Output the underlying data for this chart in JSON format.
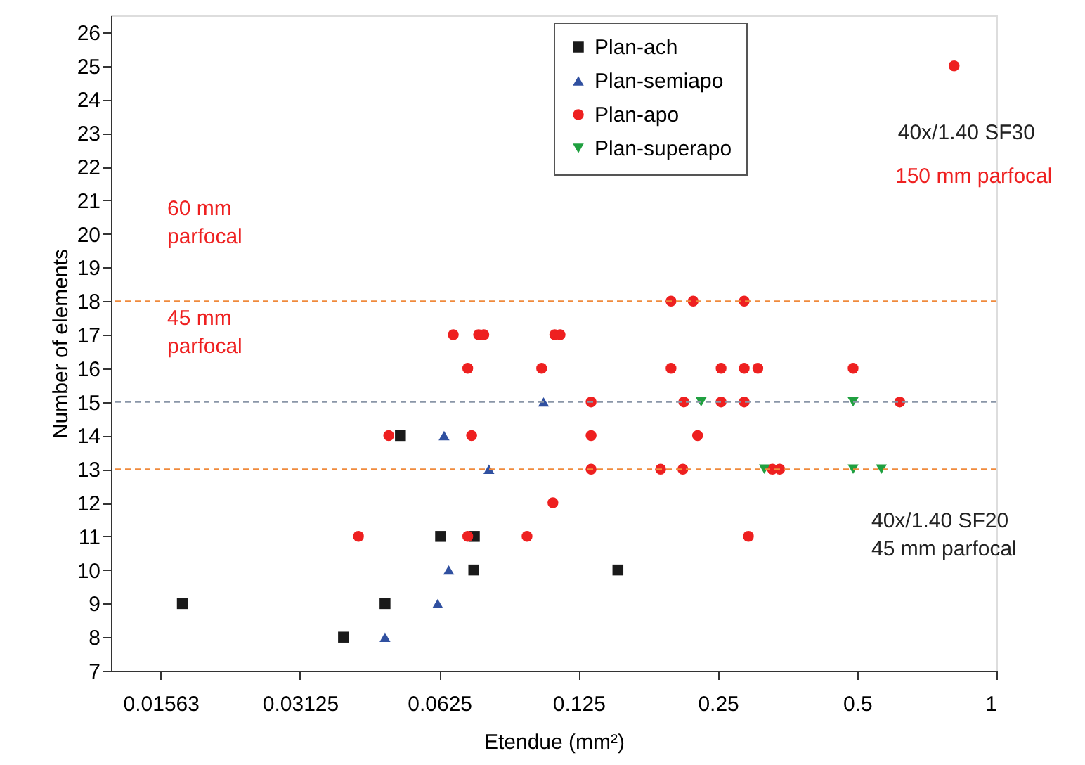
{
  "chart_data": {
    "type": "scatter",
    "xlabel": "Etendue (mm²)",
    "ylabel": "Number of elements",
    "log": "x",
    "xlim": [
      0.0122,
      1
    ],
    "ylim": [
      7,
      26.5
    ],
    "xticks": [
      {
        "value": 0.015625,
        "label": "0.01563"
      },
      0.03125,
      0.0625,
      0.125,
      0.25,
      0.5,
      1
    ],
    "yticks": [
      7,
      8,
      9,
      10,
      11,
      12,
      13,
      14,
      15,
      16,
      17,
      18,
      19,
      20,
      21,
      22,
      23,
      24,
      25,
      26
    ],
    "grid": false,
    "legend": "top",
    "series": [
      {
        "name": "Plan-ach",
        "color": "#1a1a1a",
        "marker": "square",
        "x": [
          0.0515,
          0.0629,
          0.0744,
          0.0742,
          0.152,
          0.0174,
          0.0477,
          0.0388
        ],
        "values": [
          14,
          11,
          11,
          10,
          10,
          9,
          9,
          8
        ]
      },
      {
        "name": "Plan-semiapo",
        "color": "#3050a0",
        "marker": "triangle",
        "x": [
          0.105,
          0.064,
          0.08,
          0.0655,
          0.062,
          0.0477
        ],
        "values": [
          15,
          14,
          13,
          10,
          9,
          8
        ]
      },
      {
        "name": "Plan-apo",
        "color": "#ee2020",
        "marker": "circle",
        "x": [
          0.81,
          0.198,
          0.221,
          0.285,
          0.067,
          0.076,
          0.078,
          0.111,
          0.114,
          0.072,
          0.104,
          0.198,
          0.254,
          0.285,
          0.305,
          0.49,
          0.133,
          0.211,
          0.254,
          0.285,
          0.618,
          0.0486,
          0.0734,
          0.133,
          0.226,
          0.133,
          0.188,
          0.21,
          0.328,
          0.34,
          0.11,
          0.0418,
          0.072,
          0.0967,
          0.291
        ],
        "values": [
          25,
          18,
          18,
          18,
          17,
          17,
          17,
          17,
          17,
          16,
          16,
          16,
          16,
          16,
          16,
          16,
          15,
          15,
          15,
          15,
          15,
          14,
          14,
          14,
          14,
          13,
          13,
          13,
          13,
          13,
          12,
          11,
          11,
          11,
          11
        ]
      },
      {
        "name": "Plan-superapo",
        "color": "#20a040",
        "marker": "triangle-down",
        "x": [
          0.23,
          0.49,
          0.315,
          0.49,
          0.564
        ],
        "values": [
          15,
          15,
          13,
          13,
          13
        ]
      }
    ],
    "ref_lines": [
      {
        "axis": "y",
        "value": 18,
        "color": "#f08a3c",
        "line_style": "dashed"
      },
      {
        "axis": "y",
        "value": 15,
        "color": "#8a96a8",
        "line_style": "dashed"
      },
      {
        "axis": "y",
        "value": 13,
        "color": "#f08a3c",
        "line_style": "dashed"
      }
    ],
    "annotations": [
      "60 mm\nparfocal",
      "45 mm\nparfocal",
      {
        "text": "40x/1.40 SF30",
        "x": 0.81,
        "y": 25
      },
      "150 mm parfocal",
      "40x/1.40 SF20\n45 mm parfocal"
    ]
  }
}
